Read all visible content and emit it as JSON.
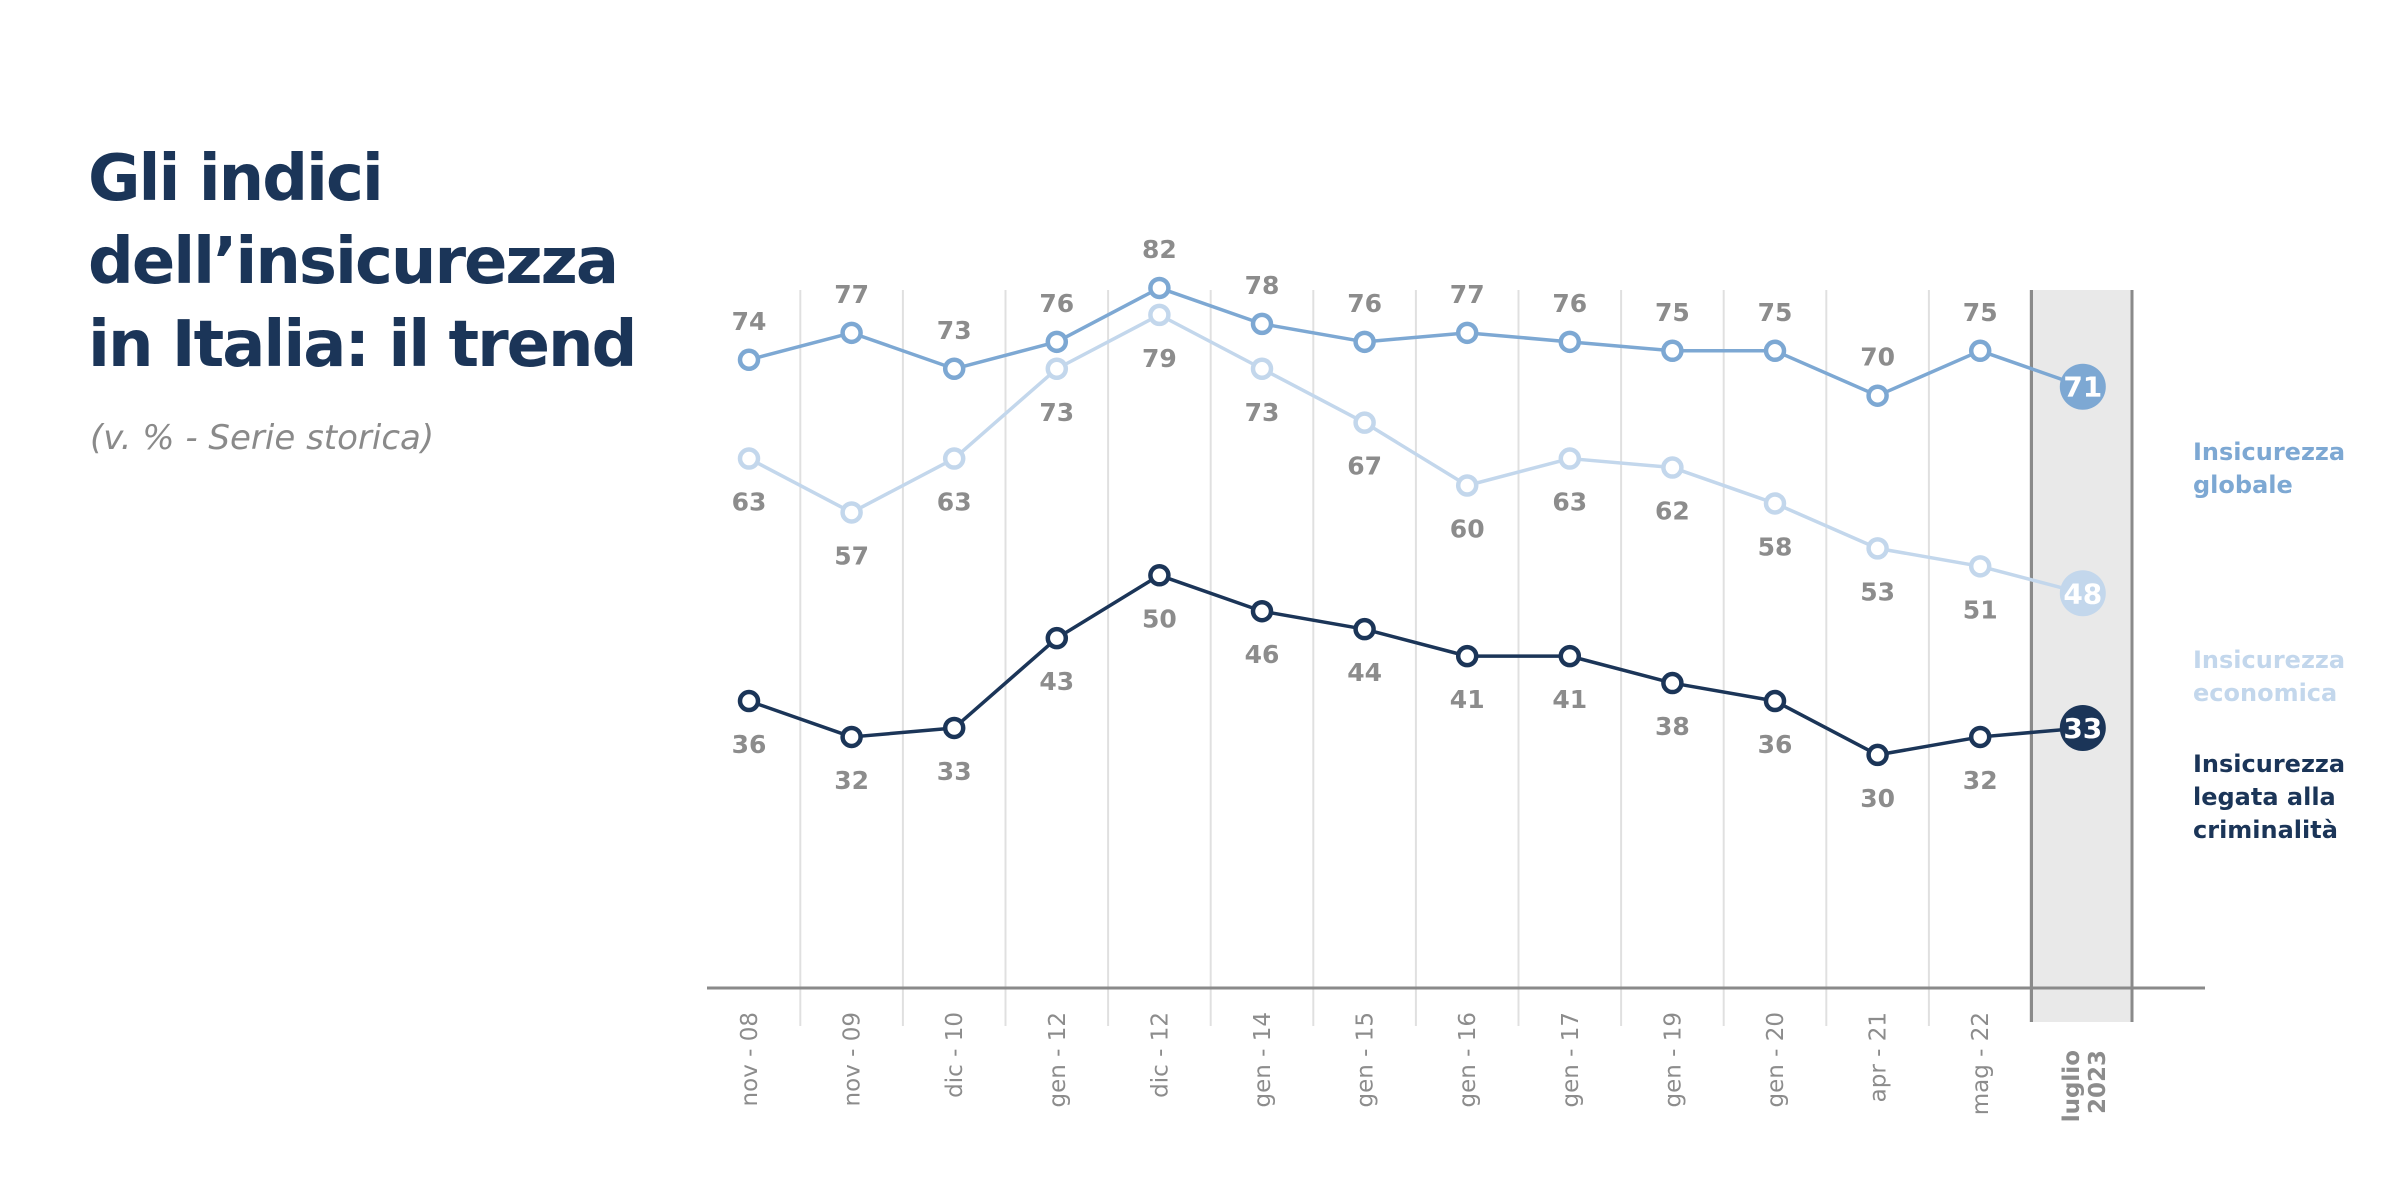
{
  "title_lines": [
    "Gli indici",
    "dell’insicurezza",
    "in Italia: il trend"
  ],
  "subtitle": "(v. % - Serie storica)",
  "chart_data": {
    "type": "line",
    "title": "Gli indici dell’insicurezza in Italia: il trend",
    "subtitle": "(v. % - Serie storica)",
    "categories": [
      "nov - 08",
      "nov - 09",
      "dic - 10",
      "gen - 12",
      "dic - 12",
      "gen - 14",
      "gen - 15",
      "gen - 16",
      "gen - 17",
      "gen - 19",
      "gen - 20",
      "apr - 21",
      "mag - 22",
      "luglio 2023"
    ],
    "highlight_category": [
      "luglio",
      "2023"
    ],
    "ylim": [
      0,
      100
    ],
    "grid": "vertical",
    "series": [
      {
        "name": "Insicurezza globale",
        "legend": [
          "Insicurezza",
          "globale"
        ],
        "color": "#7da8d3",
        "label_position": "above",
        "values": [
          74,
          77,
          73,
          76,
          82,
          78,
          76,
          77,
          76,
          75,
          75,
          70,
          75,
          71
        ]
      },
      {
        "name": "Insicurezza economica",
        "legend": [
          "Insicurezza",
          "economica"
        ],
        "color": "#c3d7ec",
        "label_position": "below",
        "values": [
          63,
          57,
          63,
          73,
          79,
          73,
          67,
          60,
          63,
          62,
          58,
          53,
          51,
          48
        ]
      },
      {
        "name": "Insicurezza legata alla criminalità",
        "legend": [
          "Insicurezza",
          "legata alla",
          "criminalità"
        ],
        "color": "#1b3558",
        "label_position": "below",
        "values": [
          36,
          32,
          33,
          43,
          50,
          46,
          44,
          41,
          41,
          38,
          36,
          30,
          32,
          33
        ]
      }
    ]
  }
}
